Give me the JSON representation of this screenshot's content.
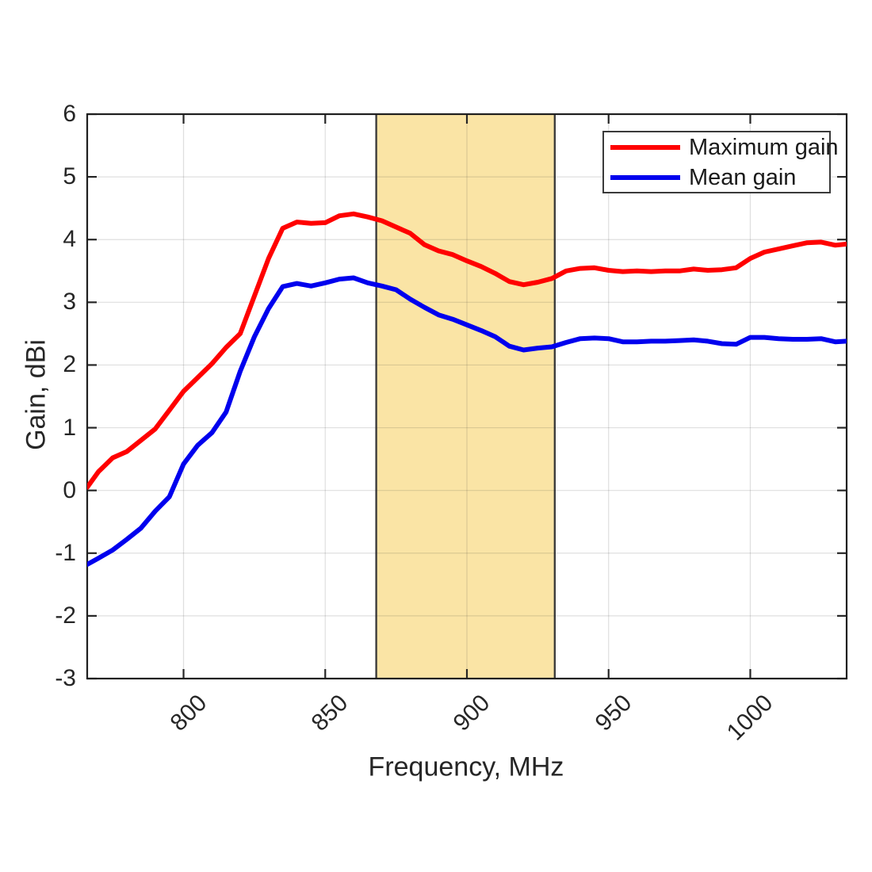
{
  "figure": {
    "background": "#ffffff"
  },
  "chart_data": {
    "type": "line",
    "title": "",
    "xlabel": "Frequency, MHz",
    "ylabel": "Gain, dBi",
    "xlim": [
      766,
      1034
    ],
    "ylim": [
      -3,
      6
    ],
    "x_ticks": [
      800,
      850,
      900,
      950,
      1000
    ],
    "y_ticks": [
      -3,
      -2,
      -1,
      0,
      1,
      2,
      3,
      4,
      5,
      6
    ],
    "grid": true,
    "legend_position": "top-right",
    "highlight_band": {
      "x_start": 868,
      "x_end": 931,
      "fill": "#fae4a5",
      "edge_color": "#3d3d3d"
    },
    "x": [
      766,
      770,
      775,
      780,
      785,
      790,
      795,
      800,
      805,
      810,
      815,
      820,
      825,
      830,
      835,
      840,
      845,
      850,
      855,
      860,
      865,
      870,
      875,
      880,
      885,
      890,
      895,
      900,
      905,
      910,
      915,
      920,
      925,
      930,
      935,
      940,
      945,
      950,
      955,
      960,
      965,
      970,
      975,
      980,
      985,
      990,
      995,
      1000,
      1005,
      1010,
      1015,
      1020,
      1025,
      1030,
      1034
    ],
    "series": [
      {
        "name": "Maximum gain",
        "color": "#ff0000",
        "values": [
          0.05,
          0.3,
          0.52,
          0.62,
          0.8,
          0.98,
          1.28,
          1.58,
          1.8,
          2.02,
          2.28,
          2.5,
          3.1,
          3.7,
          4.18,
          4.28,
          4.26,
          4.27,
          4.38,
          4.41,
          4.36,
          4.3,
          4.2,
          4.1,
          3.92,
          3.82,
          3.76,
          3.66,
          3.57,
          3.46,
          3.33,
          3.28,
          3.32,
          3.38,
          3.5,
          3.54,
          3.55,
          3.51,
          3.49,
          3.5,
          3.49,
          3.5,
          3.5,
          3.53,
          3.51,
          3.52,
          3.55,
          3.7,
          3.8,
          3.85,
          3.9,
          3.95,
          3.96,
          3.91,
          3.93
        ]
      },
      {
        "name": "Mean gain",
        "color": "#0000ee",
        "values": [
          -1.18,
          -1.08,
          -0.95,
          -0.78,
          -0.6,
          -0.33,
          -0.1,
          0.42,
          0.72,
          0.92,
          1.25,
          1.9,
          2.45,
          2.9,
          3.25,
          3.3,
          3.26,
          3.31,
          3.37,
          3.39,
          3.31,
          3.26,
          3.2,
          3.05,
          2.92,
          2.8,
          2.73,
          2.64,
          2.55,
          2.45,
          2.3,
          2.24,
          2.27,
          2.29,
          2.36,
          2.42,
          2.43,
          2.42,
          2.37,
          2.37,
          2.38,
          2.38,
          2.39,
          2.4,
          2.38,
          2.34,
          2.33,
          2.44,
          2.44,
          2.42,
          2.41,
          2.41,
          2.42,
          2.37,
          2.38
        ]
      }
    ]
  }
}
